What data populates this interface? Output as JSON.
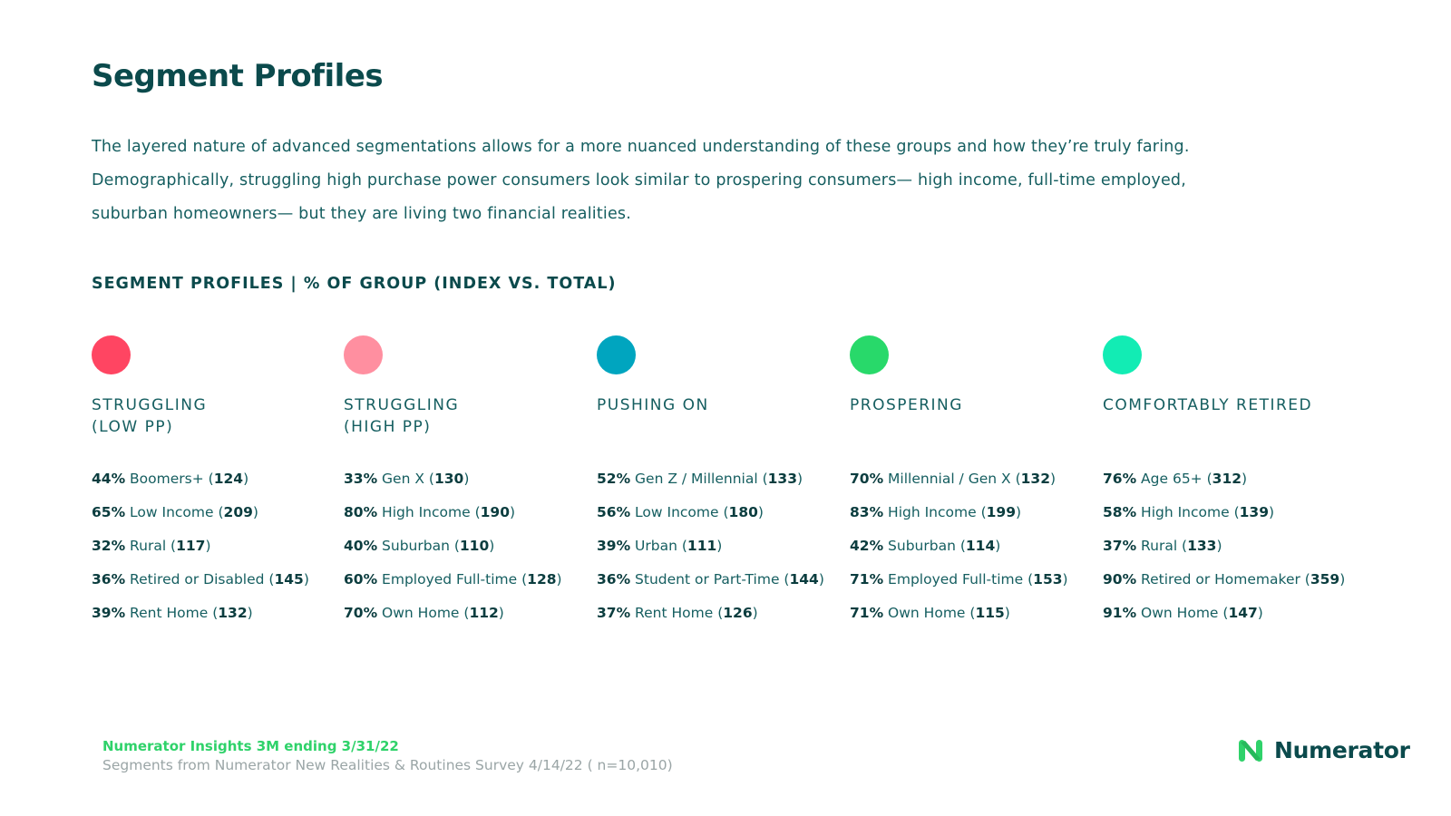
{
  "page": {
    "title": "Segment Profiles",
    "intro": [
      "The layered nature of advanced segmentations allows for a more nuanced understanding of these groups and how they’re truly faring.",
      "Demographically, struggling high purchase power consumers look similar to prospering consumers— high income, full-time employed,",
      "suburban homeowners— but they are living two financial realities."
    ],
    "section_label": "SEGMENT PROFILES | % OF GROUP (INDEX VS. TOTAL)"
  },
  "segments": [
    {
      "name": "STRUGGLING\n(LOW PP)",
      "color": "#ff4562",
      "stats": [
        {
          "pct": "44%",
          "label": "Boomers+",
          "index": "124"
        },
        {
          "pct": "65%",
          "label": "Low Income",
          "index": "209"
        },
        {
          "pct": "32%",
          "label": "Rural",
          "index": "117"
        },
        {
          "pct": "36%",
          "label": "Retired or Disabled",
          "index": "145"
        },
        {
          "pct": "39%",
          "label": "Rent Home",
          "index": "132"
        }
      ]
    },
    {
      "name": "STRUGGLING\n(HIGH PP)",
      "color": "#ff8fa0",
      "stats": [
        {
          "pct": "33%",
          "label": "Gen X",
          "index": "130"
        },
        {
          "pct": "80%",
          "label": "High Income",
          "index": "190"
        },
        {
          "pct": "40%",
          "label": "Suburban",
          "index": "110"
        },
        {
          "pct": "60%",
          "label": "Employed Full-time",
          "index": "128"
        },
        {
          "pct": "70%",
          "label": "Own Home",
          "index": "112"
        }
      ]
    },
    {
      "name": "PUSHING ON",
      "color": "#00a5bf",
      "stats": [
        {
          "pct": "52%",
          "label": "Gen Z / Millennial",
          "index": "133"
        },
        {
          "pct": "56%",
          "label": "Low Income",
          "index": "180"
        },
        {
          "pct": "39%",
          "label": "Urban",
          "index": "111"
        },
        {
          "pct": "36%",
          "label": "Student or Part-Time",
          "index": "144"
        },
        {
          "pct": "37%",
          "label": "Rent Home",
          "index": "126"
        }
      ]
    },
    {
      "name": "PROSPERING",
      "color": "#28d96a",
      "stats": [
        {
          "pct": "70%",
          "label": "Millennial / Gen X",
          "index": "132"
        },
        {
          "pct": "83%",
          "label": "High Income",
          "index": "199"
        },
        {
          "pct": "42%",
          "label": "Suburban",
          "index": "114"
        },
        {
          "pct": "71%",
          "label": "Employed Full-time",
          "index": "153"
        },
        {
          "pct": "71%",
          "label": "Own Home",
          "index": "115"
        }
      ]
    },
    {
      "name": "COMFORTABLY RETIRED",
      "color": "#12ecb4",
      "stats": [
        {
          "pct": "76%",
          "label": "Age 65+",
          "index": "312"
        },
        {
          "pct": "58%",
          "label": "High Income",
          "index": "139"
        },
        {
          "pct": "37%",
          "label": "Rural",
          "index": "133"
        },
        {
          "pct": "90%",
          "label": "Retired or Homemaker",
          "index": "359"
        },
        {
          "pct": "91%",
          "label": "Own Home",
          "index": "147"
        }
      ]
    }
  ],
  "footer": {
    "source_primary": "Numerator Insights 3M ending 3/31/22",
    "source_secondary": "Segments from Numerator New Realities & Routines Survey 4/14/22 ( n=10,010)",
    "logo_text": "Numerator",
    "logo_icon": "numerator-n-logo-icon",
    "logo_color": "#2fd26a"
  }
}
